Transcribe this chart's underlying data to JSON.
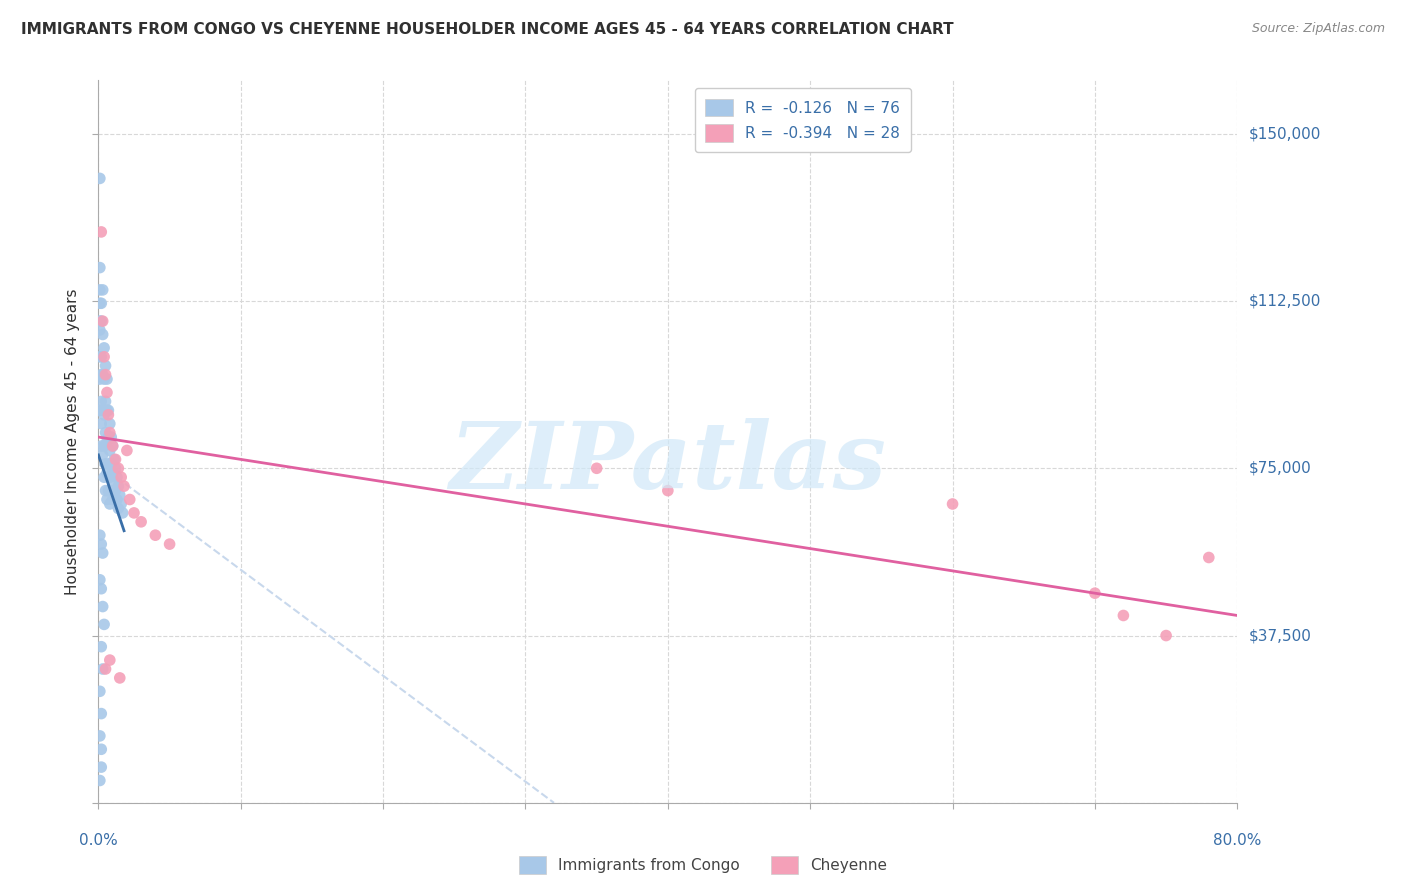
{
  "title": "IMMIGRANTS FROM CONGO VS CHEYENNE HOUSEHOLDER INCOME AGES 45 - 64 YEARS CORRELATION CHART",
  "source": "Source: ZipAtlas.com",
  "ylabel": "Householder Income Ages 45 - 64 years",
  "xlim": [
    0.0,
    0.8
  ],
  "ylim": [
    0,
    162000
  ],
  "ytick_positions": [
    0,
    37500,
    75000,
    112500,
    150000
  ],
  "ytick_labels": [
    "",
    "$37,500",
    "$75,000",
    "$112,500",
    "$150,000"
  ],
  "xtick_positions": [
    0.0,
    0.1,
    0.2,
    0.3,
    0.4,
    0.5,
    0.6,
    0.7,
    0.8
  ],
  "legend_r1": "-0.126",
  "legend_n1": "76",
  "legend_r2": "-0.394",
  "legend_n2": "28",
  "color_blue_scatter": "#a8c8e8",
  "color_pink_scatter": "#f4a0b8",
  "color_line_blue": "#3a6fa8",
  "color_line_pink": "#e060a0",
  "color_line_dashed": "#c8d8ec",
  "color_axis_label": "#3a6fa8",
  "color_title": "#303030",
  "color_grid": "#d8d8d8",
  "watermark_text": "ZIPatlas",
  "watermark_color": "#d0e8f8",
  "blue_scatter_x": [
    0.001,
    0.001,
    0.001,
    0.001,
    0.001,
    0.001,
    0.001,
    0.001,
    0.001,
    0.002,
    0.002,
    0.002,
    0.002,
    0.002,
    0.002,
    0.002,
    0.003,
    0.003,
    0.003,
    0.003,
    0.003,
    0.004,
    0.004,
    0.004,
    0.004,
    0.004,
    0.005,
    0.005,
    0.005,
    0.005,
    0.005,
    0.006,
    0.006,
    0.006,
    0.006,
    0.006,
    0.007,
    0.007,
    0.007,
    0.007,
    0.008,
    0.008,
    0.008,
    0.008,
    0.009,
    0.009,
    0.009,
    0.01,
    0.01,
    0.01,
    0.011,
    0.011,
    0.012,
    0.012,
    0.013,
    0.013,
    0.014,
    0.014,
    0.015,
    0.016,
    0.017,
    0.001,
    0.002,
    0.003,
    0.001,
    0.002,
    0.003,
    0.004,
    0.002,
    0.003,
    0.001,
    0.002,
    0.001,
    0.002,
    0.002,
    0.001
  ],
  "blue_scatter_y": [
    140000,
    120000,
    115000,
    112000,
    108000,
    106000,
    100000,
    95000,
    88000,
    112000,
    108000,
    100000,
    96000,
    90000,
    85000,
    80000,
    115000,
    105000,
    96000,
    88000,
    78000,
    102000,
    95000,
    87000,
    80000,
    73000,
    98000,
    90000,
    83000,
    76000,
    70000,
    95000,
    88000,
    81000,
    74000,
    68000,
    88000,
    82000,
    76000,
    70000,
    85000,
    79000,
    73000,
    67000,
    82000,
    76000,
    70000,
    80000,
    74000,
    68000,
    77000,
    72000,
    75000,
    70000,
    73000,
    68000,
    71000,
    66000,
    69000,
    67000,
    65000,
    60000,
    58000,
    56000,
    50000,
    48000,
    44000,
    40000,
    35000,
    30000,
    25000,
    20000,
    15000,
    12000,
    8000,
    5000
  ],
  "pink_scatter_x": [
    0.002,
    0.003,
    0.004,
    0.005,
    0.006,
    0.007,
    0.008,
    0.01,
    0.012,
    0.014,
    0.016,
    0.018,
    0.02,
    0.022,
    0.025,
    0.03,
    0.04,
    0.05,
    0.35,
    0.4,
    0.6,
    0.7,
    0.72,
    0.75,
    0.78,
    0.005,
    0.008,
    0.015
  ],
  "pink_scatter_y": [
    128000,
    108000,
    100000,
    96000,
    92000,
    87000,
    83000,
    80000,
    77000,
    75000,
    73000,
    71000,
    79000,
    68000,
    65000,
    63000,
    60000,
    58000,
    75000,
    70000,
    67000,
    47000,
    42000,
    37500,
    55000,
    30000,
    32000,
    28000
  ],
  "blue_line_x": [
    0.0,
    0.018
  ],
  "blue_line_y": [
    78000,
    61000
  ],
  "pink_line_x": [
    0.0,
    0.8
  ],
  "pink_line_y": [
    82000,
    42000
  ],
  "dashed_line_x": [
    0.0,
    0.32
  ],
  "dashed_line_y": [
    76000,
    0
  ]
}
